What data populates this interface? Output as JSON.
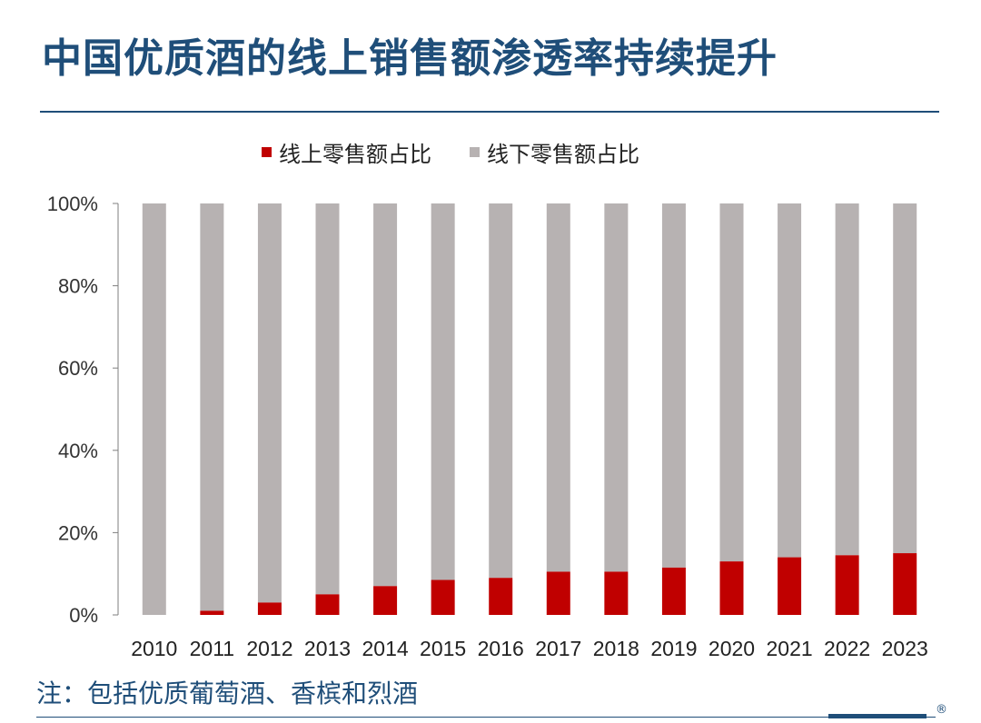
{
  "title": "中国优质酒的线上销售额渗透率持续提升",
  "note": "注：包括优质葡萄酒、香槟和烈酒",
  "reg_mark": "®",
  "colors": {
    "online": "#c00000",
    "offline": "#b7b2b2",
    "title": "#1f4e79",
    "axis": "#7f7f7f"
  },
  "chart_data": {
    "type": "bar",
    "stacked": true,
    "categories": [
      "2010",
      "2011",
      "2012",
      "2013",
      "2014",
      "2015",
      "2016",
      "2017",
      "2018",
      "2019",
      "2020",
      "2021",
      "2022",
      "2023"
    ],
    "series": [
      {
        "name": "线上零售额占比",
        "values": [
          0,
          1,
          3,
          5,
          7,
          8.5,
          9,
          10.5,
          10.5,
          11.5,
          13,
          14,
          14.5,
          15
        ]
      },
      {
        "name": "线下零售额占比",
        "values": [
          100,
          99,
          97,
          95,
          93,
          91.5,
          91,
          89.5,
          89.5,
          88.5,
          87,
          86,
          85.5,
          85
        ]
      }
    ],
    "yticks": [
      "0%",
      "20%",
      "40%",
      "60%",
      "80%",
      "100%"
    ],
    "ylim": [
      0,
      100
    ],
    "grid": false,
    "legend_position": "top"
  }
}
